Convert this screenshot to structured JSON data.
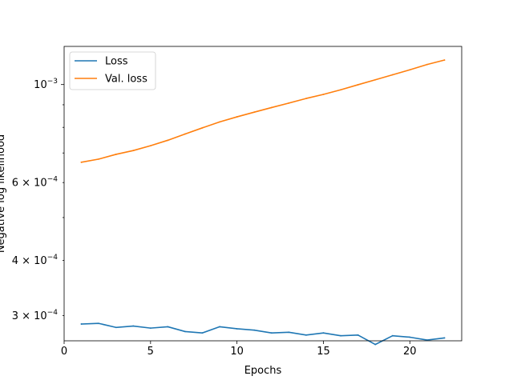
{
  "chart_data": {
    "type": "line",
    "xlabel": "Epochs",
    "ylabel": "Negative log likelihood",
    "yscale": "log",
    "xlim": [
      0,
      23
    ],
    "ylim": [
      0.000263,
      0.00122
    ],
    "grid": false,
    "legend_position": "top-left",
    "x_ticks": [
      {
        "value": 0,
        "label": "0"
      },
      {
        "value": 5,
        "label": "5"
      },
      {
        "value": 10,
        "label": "10"
      },
      {
        "value": 15,
        "label": "15"
      },
      {
        "value": 20,
        "label": "20"
      }
    ],
    "y_major_ticks": [
      {
        "value": 0.001,
        "label": "10",
        "sup": "−3"
      }
    ],
    "y_minor_ticks": [
      {
        "value": 0.0003,
        "label": "3 × 10",
        "sup": "−4"
      },
      {
        "value": 0.0004,
        "label": "4 × 10",
        "sup": "−4"
      },
      {
        "value": 0.0005,
        "label": "",
        "sup": ""
      },
      {
        "value": 0.0006,
        "label": "6 × 10",
        "sup": "−4"
      },
      {
        "value": 0.0007,
        "label": "",
        "sup": ""
      },
      {
        "value": 0.0008,
        "label": "",
        "sup": ""
      },
      {
        "value": 0.0009,
        "label": "",
        "sup": ""
      }
    ],
    "x": [
      1,
      2,
      3,
      4,
      5,
      6,
      7,
      8,
      9,
      10,
      11,
      12,
      13,
      14,
      15,
      16,
      17,
      18,
      19,
      20,
      21,
      22
    ],
    "series": [
      {
        "name": "Loss",
        "color": "#1f77b4",
        "values": [
          0.000287,
          0.000288,
          0.000282,
          0.000284,
          0.000281,
          0.000283,
          0.000276,
          0.000274,
          0.000283,
          0.00028,
          0.000278,
          0.000274,
          0.000275,
          0.000271,
          0.000274,
          0.00027,
          0.000271,
          0.000258,
          0.00027,
          0.000268,
          0.000264,
          0.000267
        ]
      },
      {
        "name": "Val. loss",
        "color": "#ff7f0e",
        "values": [
          0.000667,
          0.000678,
          0.000695,
          0.000709,
          0.000727,
          0.000748,
          0.000773,
          0.000798,
          0.000823,
          0.000845,
          0.000866,
          0.000887,
          0.000908,
          0.00093,
          0.00095,
          0.000973,
          0.000999,
          0.001025,
          0.001052,
          0.00108,
          0.00111,
          0.001136
        ]
      }
    ]
  }
}
